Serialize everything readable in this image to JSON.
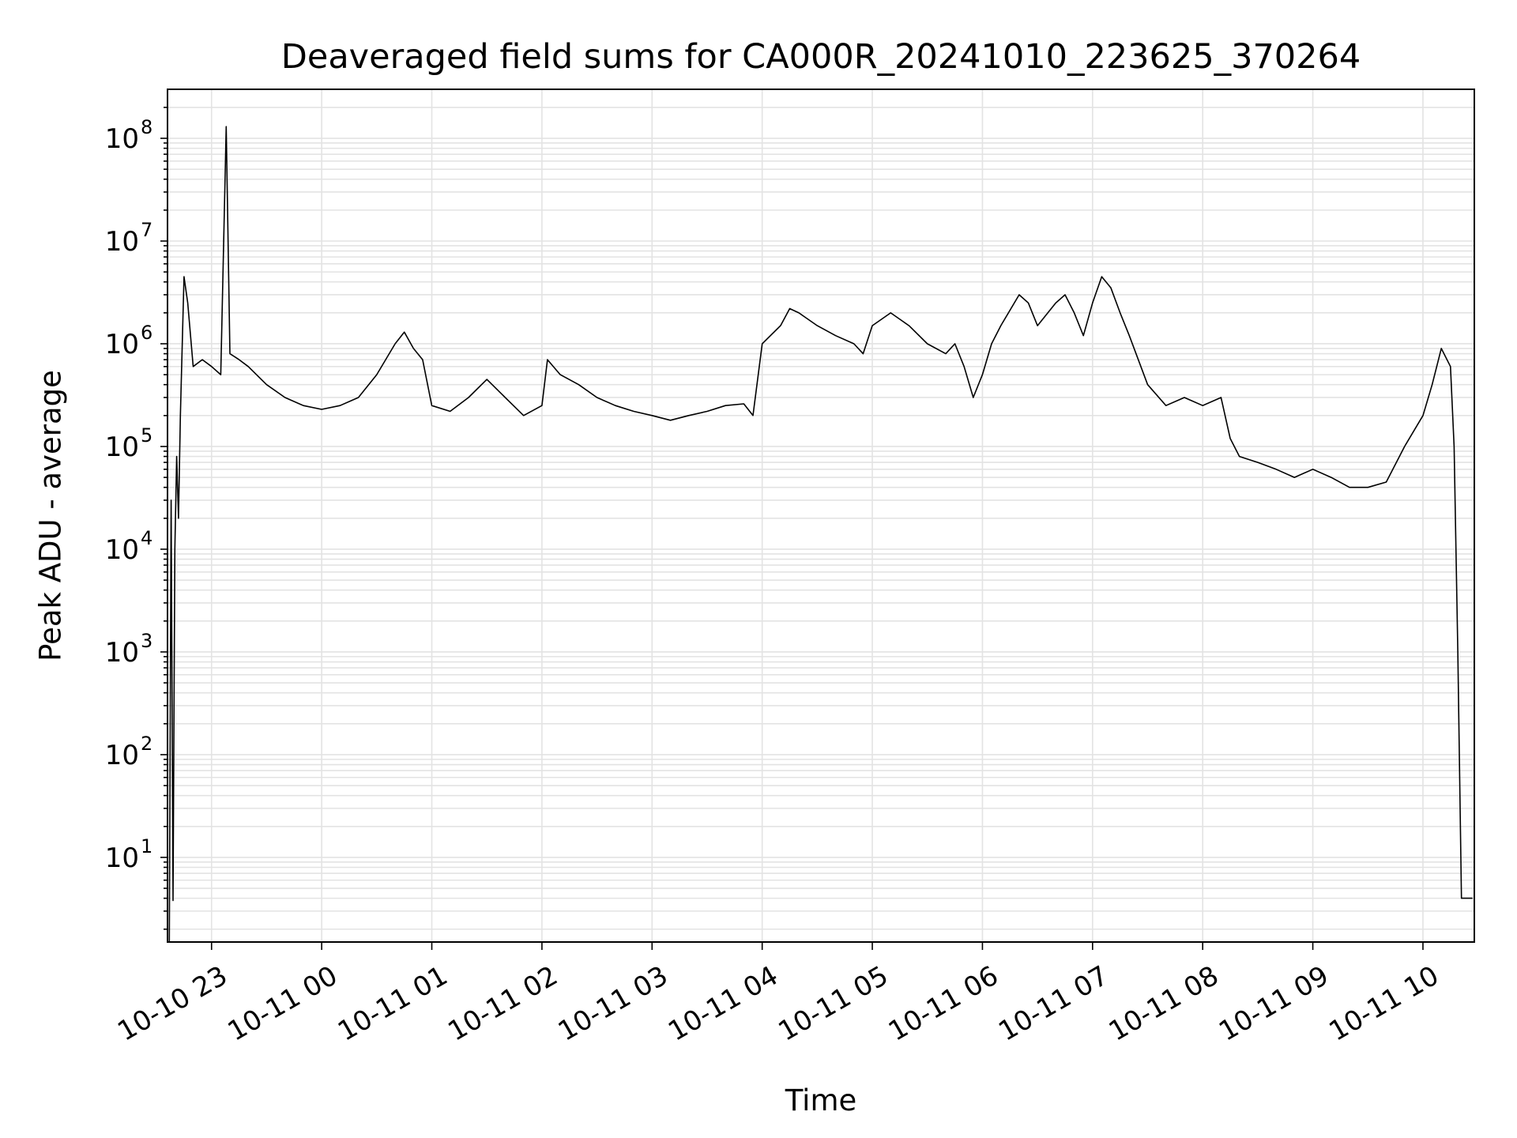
{
  "chart_data": {
    "type": "line",
    "title": "Deaveraged field sums for CA000R_20241010_223625_370264",
    "xlabel": "Time",
    "ylabel": "Peak ADU - average",
    "yscale": "log",
    "ylim": [
      1.5,
      300000000
    ],
    "xlim": [
      "2024-10-10 22:36",
      "2024-10-11 10:28"
    ],
    "grid": true,
    "line_color": "#000000",
    "x_ticks": [
      {
        "t": "2024-10-10 23:00",
        "label": "10-10 23"
      },
      {
        "t": "2024-10-11 00:00",
        "label": "10-11 00"
      },
      {
        "t": "2024-10-11 01:00",
        "label": "10-11 01"
      },
      {
        "t": "2024-10-11 02:00",
        "label": "10-11 02"
      },
      {
        "t": "2024-10-11 03:00",
        "label": "10-11 03"
      },
      {
        "t": "2024-10-11 04:00",
        "label": "10-11 04"
      },
      {
        "t": "2024-10-11 05:00",
        "label": "10-11 05"
      },
      {
        "t": "2024-10-11 06:00",
        "label": "10-11 06"
      },
      {
        "t": "2024-10-11 07:00",
        "label": "10-11 07"
      },
      {
        "t": "2024-10-11 08:00",
        "label": "10-11 08"
      },
      {
        "t": "2024-10-11 09:00",
        "label": "10-11 09"
      },
      {
        "t": "2024-10-11 10:00",
        "label": "10-11 10"
      }
    ],
    "y_ticks": [
      {
        "value": 10,
        "base": "10",
        "exp": "1"
      },
      {
        "value": 100,
        "base": "10",
        "exp": "2"
      },
      {
        "value": 1000,
        "base": "10",
        "exp": "3"
      },
      {
        "value": 10000,
        "base": "10",
        "exp": "4"
      },
      {
        "value": 100000,
        "base": "10",
        "exp": "5"
      },
      {
        "value": 1000000,
        "base": "10",
        "exp": "6"
      },
      {
        "value": 10000000,
        "base": "10",
        "exp": "7"
      },
      {
        "value": 100000000,
        "base": "10",
        "exp": "8"
      }
    ],
    "series": [
      {
        "points": [
          [
            "2024-10-10 22:37",
            1.5
          ],
          [
            "2024-10-10 22:38",
            30000
          ],
          [
            "2024-10-10 22:39",
            3.8
          ],
          [
            "2024-10-10 22:40",
            10000
          ],
          [
            "2024-10-10 22:41",
            80000
          ],
          [
            "2024-10-10 22:42",
            20000
          ],
          [
            "2024-10-10 22:43",
            200000
          ],
          [
            "2024-10-10 22:45",
            4500000
          ],
          [
            "2024-10-10 22:47",
            2500000
          ],
          [
            "2024-10-10 22:50",
            600000
          ],
          [
            "2024-10-10 22:55",
            700000
          ],
          [
            "2024-10-10 23:00",
            600000
          ],
          [
            "2024-10-10 23:05",
            500000
          ],
          [
            "2024-10-10 23:08",
            130000000
          ],
          [
            "2024-10-10 23:10",
            800000
          ],
          [
            "2024-10-10 23:15",
            700000
          ],
          [
            "2024-10-10 23:20",
            600000
          ],
          [
            "2024-10-10 23:30",
            400000
          ],
          [
            "2024-10-10 23:40",
            300000
          ],
          [
            "2024-10-10 23:50",
            250000
          ],
          [
            "2024-10-11 00:00",
            230000
          ],
          [
            "2024-10-11 00:10",
            250000
          ],
          [
            "2024-10-11 00:20",
            300000
          ],
          [
            "2024-10-11 00:30",
            500000
          ],
          [
            "2024-10-11 00:40",
            1000000
          ],
          [
            "2024-10-11 00:45",
            1300000
          ],
          [
            "2024-10-11 00:50",
            900000
          ],
          [
            "2024-10-11 00:55",
            700000
          ],
          [
            "2024-10-11 01:00",
            250000
          ],
          [
            "2024-10-11 01:10",
            220000
          ],
          [
            "2024-10-11 01:20",
            300000
          ],
          [
            "2024-10-11 01:30",
            450000
          ],
          [
            "2024-10-11 01:40",
            300000
          ],
          [
            "2024-10-11 01:50",
            200000
          ],
          [
            "2024-10-11 02:00",
            250000
          ],
          [
            "2024-10-11 02:03",
            700000
          ],
          [
            "2024-10-11 02:10",
            500000
          ],
          [
            "2024-10-11 02:20",
            400000
          ],
          [
            "2024-10-11 02:30",
            300000
          ],
          [
            "2024-10-11 02:40",
            250000
          ],
          [
            "2024-10-11 02:50",
            220000
          ],
          [
            "2024-10-11 03:00",
            200000
          ],
          [
            "2024-10-11 03:10",
            180000
          ],
          [
            "2024-10-11 03:20",
            200000
          ],
          [
            "2024-10-11 03:30",
            220000
          ],
          [
            "2024-10-11 03:40",
            250000
          ],
          [
            "2024-10-11 03:50",
            260000
          ],
          [
            "2024-10-11 03:55",
            200000
          ],
          [
            "2024-10-11 04:00",
            1000000
          ],
          [
            "2024-10-11 04:10",
            1500000
          ],
          [
            "2024-10-11 04:15",
            2200000
          ],
          [
            "2024-10-11 04:20",
            2000000
          ],
          [
            "2024-10-11 04:30",
            1500000
          ],
          [
            "2024-10-11 04:40",
            1200000
          ],
          [
            "2024-10-11 04:50",
            1000000
          ],
          [
            "2024-10-11 04:55",
            800000
          ],
          [
            "2024-10-11 05:00",
            1500000
          ],
          [
            "2024-10-11 05:10",
            2000000
          ],
          [
            "2024-10-11 05:20",
            1500000
          ],
          [
            "2024-10-11 05:30",
            1000000
          ],
          [
            "2024-10-11 05:40",
            800000
          ],
          [
            "2024-10-11 05:45",
            1000000
          ],
          [
            "2024-10-11 05:50",
            600000
          ],
          [
            "2024-10-11 05:55",
            300000
          ],
          [
            "2024-10-11 06:00",
            500000
          ],
          [
            "2024-10-11 06:05",
            1000000
          ],
          [
            "2024-10-11 06:10",
            1500000
          ],
          [
            "2024-10-11 06:20",
            3000000
          ],
          [
            "2024-10-11 06:25",
            2500000
          ],
          [
            "2024-10-11 06:30",
            1500000
          ],
          [
            "2024-10-11 06:40",
            2500000
          ],
          [
            "2024-10-11 06:45",
            3000000
          ],
          [
            "2024-10-11 06:50",
            2000000
          ],
          [
            "2024-10-11 06:55",
            1200000
          ],
          [
            "2024-10-11 07:00",
            2500000
          ],
          [
            "2024-10-11 07:05",
            4500000
          ],
          [
            "2024-10-11 07:10",
            3500000
          ],
          [
            "2024-10-11 07:15",
            2000000
          ],
          [
            "2024-10-11 07:20",
            1200000
          ],
          [
            "2024-10-11 07:30",
            400000
          ],
          [
            "2024-10-11 07:40",
            250000
          ],
          [
            "2024-10-11 07:50",
            300000
          ],
          [
            "2024-10-11 08:00",
            250000
          ],
          [
            "2024-10-11 08:10",
            300000
          ],
          [
            "2024-10-11 08:15",
            120000
          ],
          [
            "2024-10-11 08:20",
            80000
          ],
          [
            "2024-10-11 08:30",
            70000
          ],
          [
            "2024-10-11 08:40",
            60000
          ],
          [
            "2024-10-11 08:50",
            50000
          ],
          [
            "2024-10-11 09:00",
            60000
          ],
          [
            "2024-10-11 09:10",
            50000
          ],
          [
            "2024-10-11 09:20",
            40000
          ],
          [
            "2024-10-11 09:30",
            40000
          ],
          [
            "2024-10-11 09:40",
            45000
          ],
          [
            "2024-10-11 09:50",
            100000
          ],
          [
            "2024-10-11 10:00",
            200000
          ],
          [
            "2024-10-11 10:05",
            400000
          ],
          [
            "2024-10-11 10:10",
            900000
          ],
          [
            "2024-10-11 10:15",
            600000
          ],
          [
            "2024-10-11 10:17",
            100000
          ],
          [
            "2024-10-11 10:19",
            1000
          ],
          [
            "2024-10-11 10:21",
            4
          ],
          [
            "2024-10-11 10:23",
            4
          ],
          [
            "2024-10-11 10:27",
            4
          ]
        ]
      }
    ]
  }
}
